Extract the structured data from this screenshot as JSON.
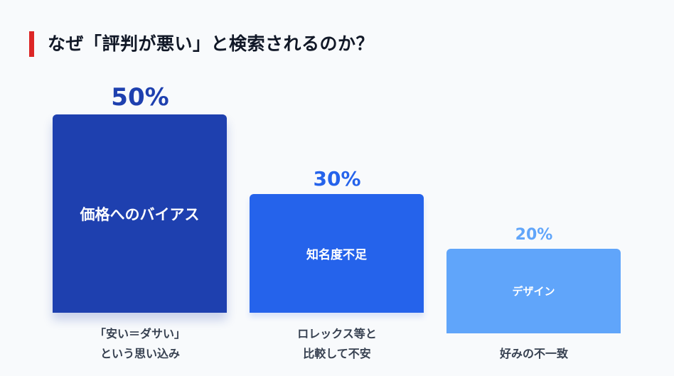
{
  "title": "なぜ「評判が悪い」と検索されるのか？",
  "colors": {
    "accent": "#dc2626",
    "bars": [
      "#1e40af",
      "#2563eb",
      "#60a5fa"
    ]
  },
  "chart_data": {
    "type": "bar",
    "title": "なぜ「評判が悪い」と検索されるのか？",
    "categories": [
      "価格へのバイアス",
      "知名度不足",
      "デザイン"
    ],
    "values": [
      50,
      30,
      20
    ],
    "value_labels": [
      "50%",
      "30%",
      "20%"
    ],
    "captions": [
      [
        "「安い＝ダサい」",
        "という思い込み"
      ],
      [
        "ロレックス等と",
        "比較して不安"
      ],
      [
        "",
        "好みの不一致"
      ]
    ],
    "unit": "%",
    "grid": false
  }
}
